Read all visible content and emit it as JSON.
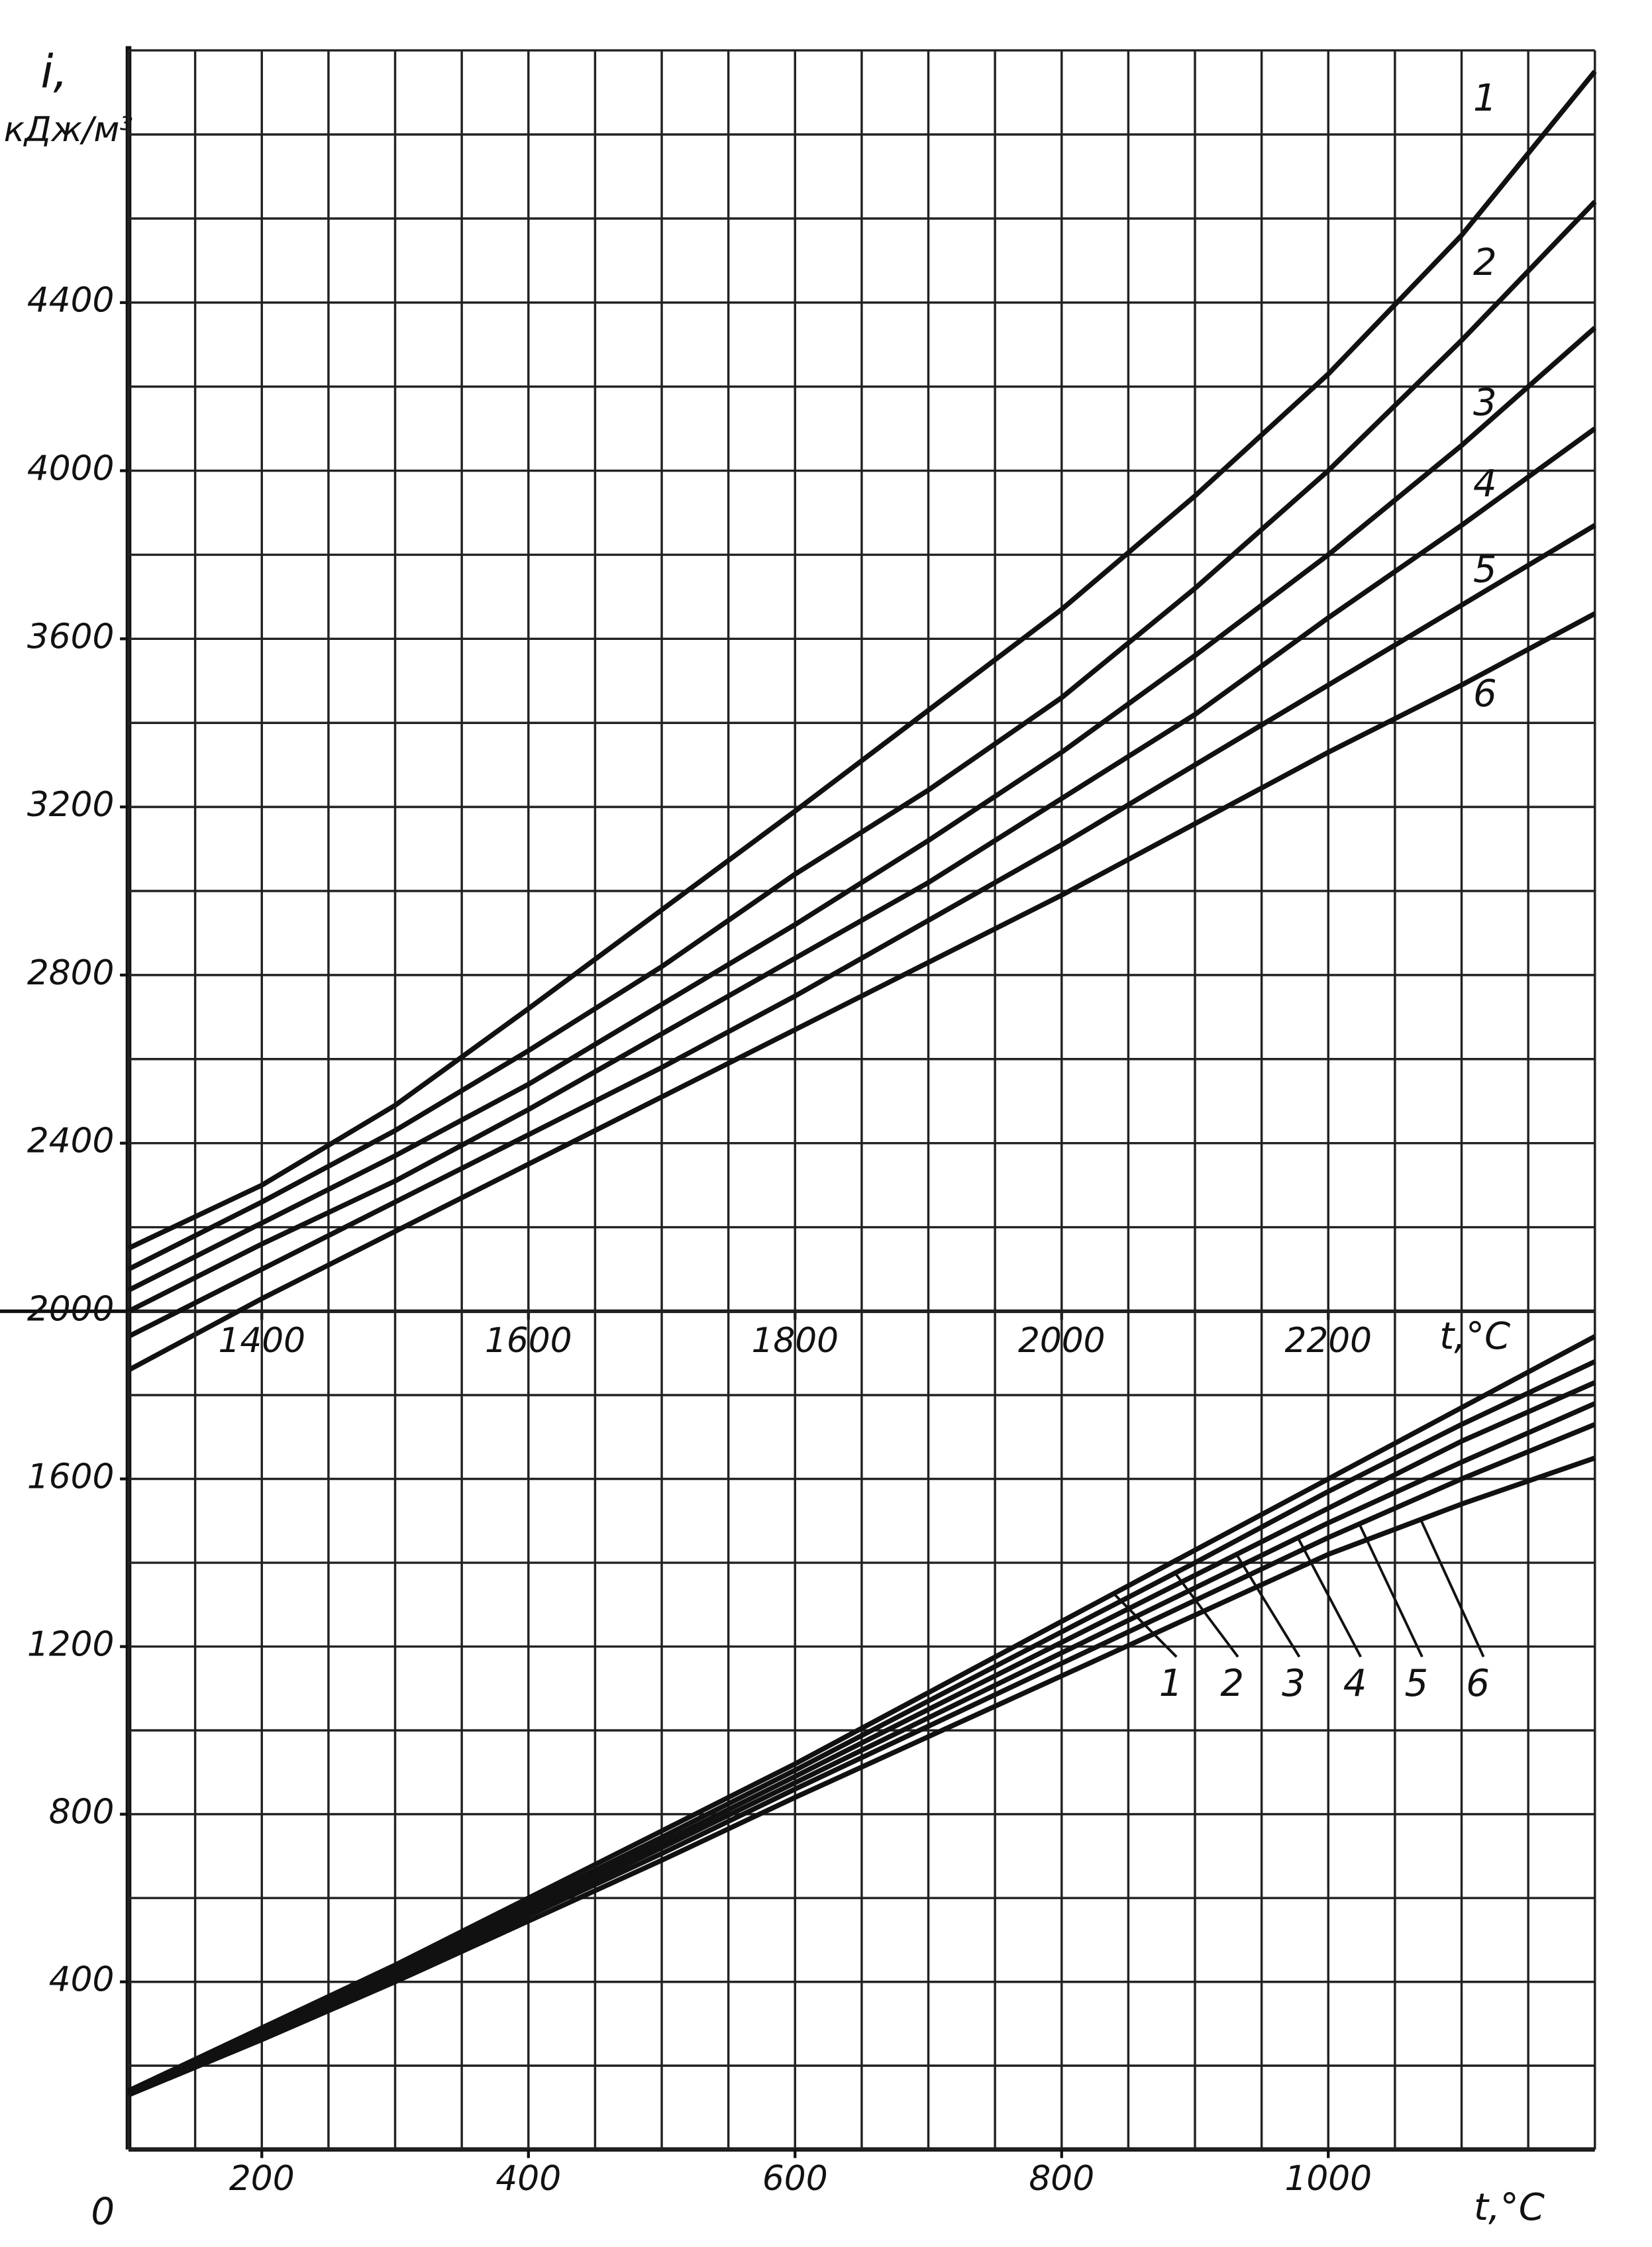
{
  "chart_data": [
    {
      "type": "line",
      "ylabel_symbol": "i,",
      "ylabel_unit": "кДж/м³",
      "xlabel": "t,°C",
      "x": [
        1300,
        1400,
        1500,
        1600,
        1700,
        1800,
        1900,
        2000,
        2100,
        2200,
        2300,
        2400
      ],
      "xlim": [
        1300,
        2400
      ],
      "ylim": [
        2000,
        5000
      ],
      "xticks": [
        1400,
        1600,
        1800,
        2000,
        2200
      ],
      "yticks": [
        2000,
        2400,
        2800,
        3200,
        3600,
        4000,
        4400
      ],
      "grid": true,
      "xgrid": [
        1300,
        1350,
        1400,
        1450,
        1500,
        1550,
        1600,
        1650,
        1700,
        1750,
        1800,
        1850,
        1900,
        1950,
        2000,
        2050,
        2100,
        2150,
        2200,
        2250,
        2300,
        2350,
        2400
      ],
      "ygrid": [
        2000,
        2200,
        2400,
        2600,
        2800,
        3000,
        3200,
        3400,
        3600,
        3800,
        4000,
        4200,
        4400,
        4600,
        4800,
        5000
      ],
      "series": [
        {
          "name": "1",
          "color": "#111111",
          "values": [
            2150,
            2300,
            2490,
            2720,
            2955,
            3190,
            3430,
            3670,
            3940,
            4230,
            4560,
            4950
          ]
        },
        {
          "name": "2",
          "color": "#111111",
          "values": [
            2100,
            2260,
            2430,
            2620,
            2820,
            3040,
            3240,
            3460,
            3720,
            4000,
            4310,
            4640
          ]
        },
        {
          "name": "3",
          "color": "#111111",
          "values": [
            2050,
            2210,
            2370,
            2540,
            2730,
            2920,
            3120,
            3330,
            3560,
            3800,
            4060,
            4340
          ]
        },
        {
          "name": "4",
          "color": "#111111",
          "values": [
            2000,
            2160,
            2310,
            2480,
            2660,
            2840,
            3020,
            3220,
            3420,
            3650,
            3870,
            4100
          ]
        },
        {
          "name": "5",
          "color": "#111111",
          "values": [
            1940,
            2100,
            2260,
            2420,
            2580,
            2750,
            2930,
            3110,
            3300,
            3490,
            3680,
            3870
          ]
        },
        {
          "name": "6",
          "color": "#111111",
          "values": [
            1860,
            2030,
            2190,
            2350,
            2510,
            2670,
            2830,
            2990,
            3160,
            3330,
            3490,
            3660
          ]
        }
      ]
    },
    {
      "type": "line",
      "xlabel": "t,°C",
      "origin_label": "0",
      "x": [
        100,
        200,
        300,
        400,
        500,
        600,
        700,
        800,
        900,
        1000,
        1100,
        1200
      ],
      "xlim": [
        100,
        1200
      ],
      "ylim": [
        0,
        2000
      ],
      "xticks": [
        200,
        400,
        600,
        800,
        1000
      ],
      "yticks": [
        400,
        800,
        1200,
        1600
      ],
      "grid": true,
      "xgrid": [
        100,
        150,
        200,
        250,
        300,
        350,
        400,
        450,
        500,
        550,
        600,
        650,
        700,
        750,
        800,
        850,
        900,
        950,
        1000,
        1050,
        1100,
        1150,
        1200
      ],
      "ygrid": [
        0,
        200,
        400,
        600,
        800,
        1000,
        1200,
        1400,
        1600,
        1800
      ],
      "series": [
        {
          "name": "1",
          "color": "#111111",
          "values": [
            140,
            290,
            440,
            600,
            760,
            920,
            1090,
            1260,
            1430,
            1600,
            1770,
            1940
          ]
        },
        {
          "name": "2",
          "color": "#111111",
          "values": [
            138,
            285,
            432,
            588,
            745,
            905,
            1070,
            1235,
            1400,
            1570,
            1730,
            1880
          ]
        },
        {
          "name": "3",
          "color": "#111111",
          "values": [
            136,
            280,
            425,
            578,
            732,
            890,
            1050,
            1210,
            1370,
            1530,
            1690,
            1830
          ]
        },
        {
          "name": "4",
          "color": "#111111",
          "values": [
            134,
            275,
            418,
            568,
            720,
            875,
            1030,
            1185,
            1340,
            1495,
            1640,
            1780
          ]
        },
        {
          "name": "5",
          "color": "#111111",
          "values": [
            132,
            270,
            410,
            558,
            706,
            860,
            1010,
            1160,
            1310,
            1460,
            1600,
            1730
          ]
        },
        {
          "name": "6",
          "color": "#111111",
          "values": [
            130,
            262,
            400,
            545,
            690,
            840,
            985,
            1130,
            1275,
            1420,
            1540,
            1650
          ]
        }
      ]
    }
  ]
}
